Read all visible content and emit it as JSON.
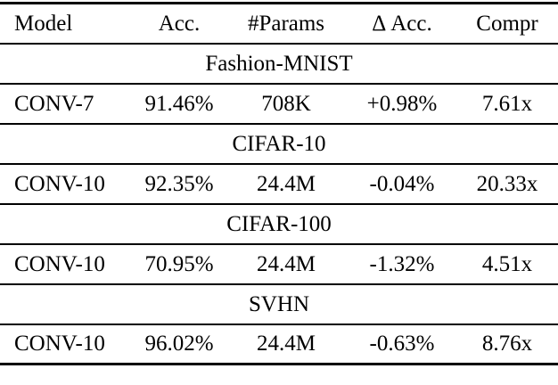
{
  "table": {
    "columns": [
      "Model",
      "Acc.",
      "#Params",
      "Δ Acc.",
      "Compr"
    ],
    "sections": [
      {
        "title": "Fashion-MNIST",
        "rows": [
          [
            "CONV-7",
            "91.46%",
            "708K",
            "+0.98%",
            "7.61x"
          ]
        ]
      },
      {
        "title": "CIFAR-10",
        "rows": [
          [
            "CONV-10",
            "92.35%",
            "24.4M",
            "-0.04%",
            "20.33x"
          ]
        ]
      },
      {
        "title": "CIFAR-100",
        "rows": [
          [
            "CONV-10",
            "70.95%",
            "24.4M",
            "-1.32%",
            "4.51x"
          ]
        ]
      },
      {
        "title": "SVHN",
        "rows": [
          [
            "CONV-10",
            "96.02%",
            "24.4M",
            "-0.63%",
            "8.76x"
          ]
        ]
      }
    ]
  },
  "colors": {
    "text": "#000000",
    "background": "#ffffff",
    "rule": "#000000"
  }
}
